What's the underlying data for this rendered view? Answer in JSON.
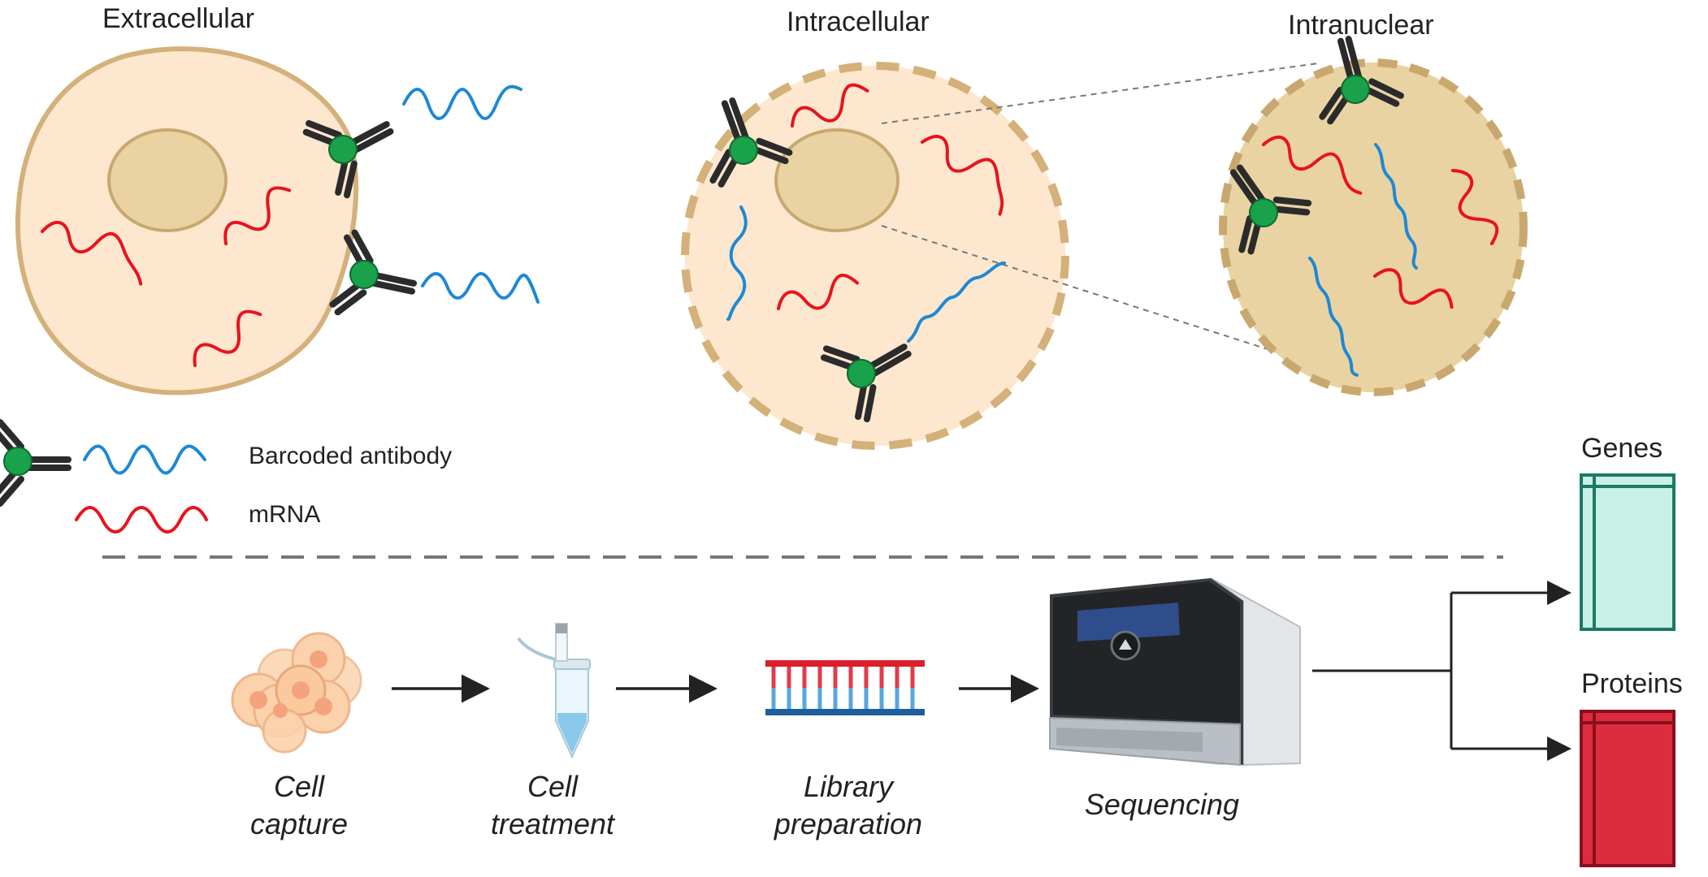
{
  "sections": {
    "extracellular": "Extracellular",
    "intracellular": "Intracellular",
    "intranuclear": "Intranuclear"
  },
  "legend": {
    "antibody": "Barcoded antibody",
    "mrna": "mRNA"
  },
  "workflow": {
    "steps": [
      {
        "line1": "Cell",
        "line2": "capture"
      },
      {
        "line1": "Cell",
        "line2": "treatment"
      },
      {
        "line1": "Library",
        "line2": "preparation"
      },
      {
        "line1": "Sequencing",
        "line2": ""
      }
    ]
  },
  "outputs": {
    "genes": "Genes",
    "proteins": "Proteins"
  },
  "colors": {
    "mrna": "#e8131c",
    "barcode": "#1e88d4",
    "antibody": "#2b2b2b",
    "bead": "#1aa14b",
    "cell_fill": "#fde7cf",
    "cell_border": "#d4b07a",
    "nucleus_fill": "#ead3a2",
    "genes_fill": "#c9f0e6",
    "genes_border": "#1b7a63",
    "proteins_fill": "#dc2d3f",
    "proteins_border": "#8a0f1e"
  }
}
